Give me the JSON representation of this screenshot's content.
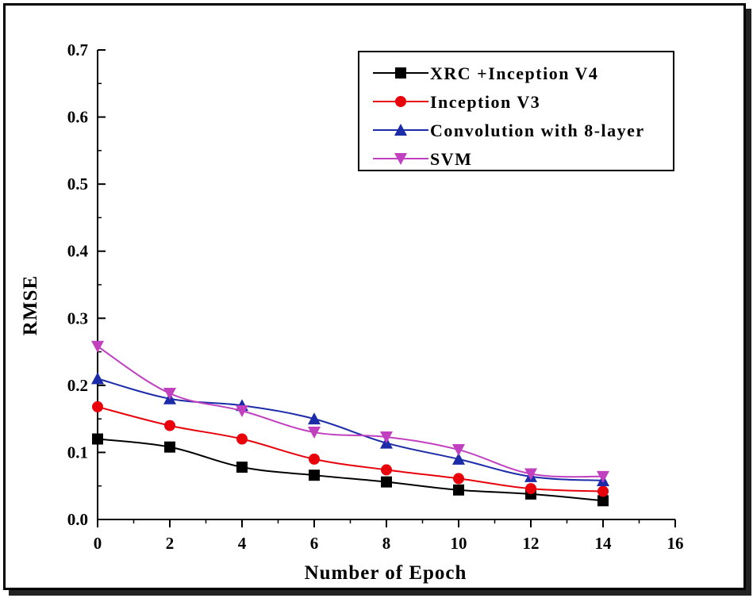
{
  "chart_data": {
    "type": "line",
    "title": "",
    "xlabel": "Number of Epoch",
    "ylabel": "RMSE",
    "xlim": [
      0,
      16
    ],
    "ylim": [
      0.0,
      0.7
    ],
    "xticks": [
      0,
      2,
      4,
      6,
      8,
      10,
      12,
      14,
      16
    ],
    "yticks": [
      0.0,
      0.1,
      0.2,
      0.3,
      0.4,
      0.5,
      0.6,
      0.7
    ],
    "xtick_labels": [
      "0",
      "2",
      "4",
      "6",
      "8",
      "10",
      "12",
      "14",
      "16"
    ],
    "ytick_labels": [
      "0.0",
      "0.1",
      "0.2",
      "0.3",
      "0.4",
      "0.5",
      "0.6",
      "0.7"
    ],
    "x": [
      0,
      2,
      4,
      6,
      8,
      10,
      12,
      14
    ],
    "legend_position": "top-right",
    "series": [
      {
        "name": "XRC +Inception V4",
        "color": "#000000",
        "marker": "square",
        "values": [
          0.12,
          0.108,
          0.078,
          0.066,
          0.056,
          0.044,
          0.038,
          0.028
        ]
      },
      {
        "name": "Inception V3",
        "color": "#e8000b",
        "marker": "circle",
        "values": [
          0.168,
          0.14,
          0.12,
          0.09,
          0.074,
          0.061,
          0.046,
          0.042
        ]
      },
      {
        "name": "Convolution with 8-layer",
        "color": "#1c2ca8",
        "marker": "triangle-up",
        "values": [
          0.21,
          0.18,
          0.17,
          0.15,
          0.114,
          0.09,
          0.064,
          0.058
        ]
      },
      {
        "name": "SVM",
        "color": "#c040c0",
        "marker": "triangle-down",
        "values": [
          0.258,
          0.188,
          0.162,
          0.13,
          0.123,
          0.104,
          0.068,
          0.064
        ]
      }
    ]
  }
}
